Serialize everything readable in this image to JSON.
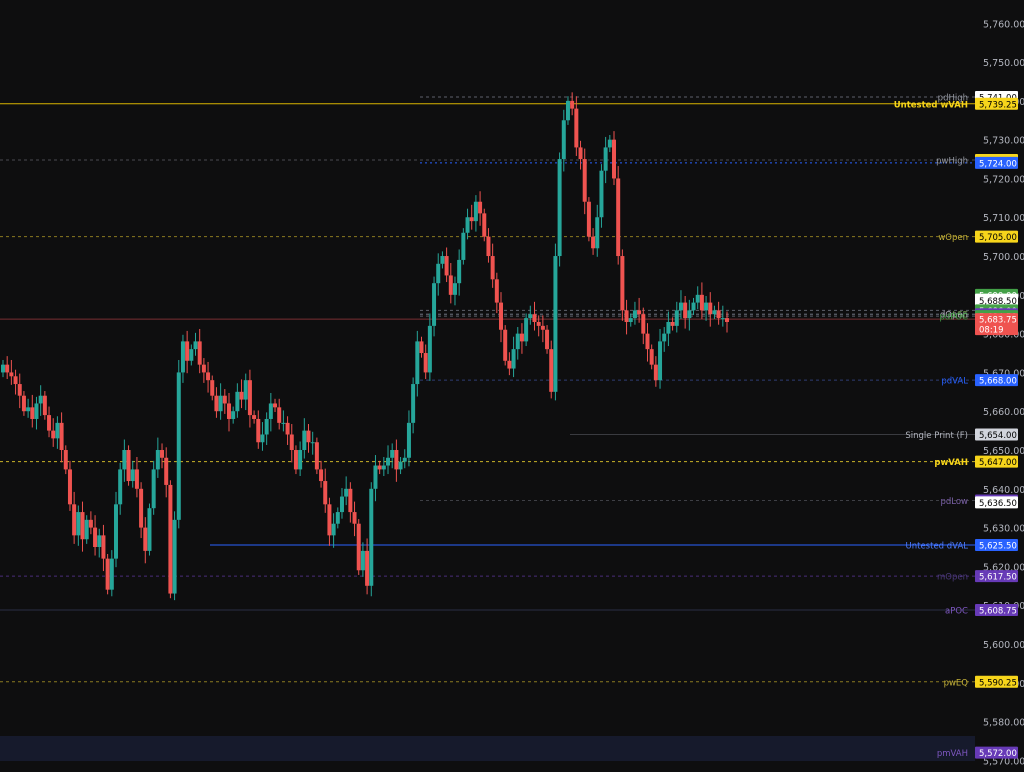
{
  "chart_data": {
    "type": "candlestick",
    "ylim": [
      5567,
      5766
    ],
    "y_axis": {
      "ticks": [
        5760,
        5750,
        5740,
        5730,
        5720,
        5710,
        5700,
        5690,
        5680,
        5670,
        5660,
        5650,
        5640,
        5630,
        5620,
        5610,
        5600,
        5590,
        5580,
        5570
      ],
      "tick_labels": [
        "5,760.00",
        "5,750.00",
        "5,740.00",
        "5,730.00",
        "5,720.00",
        "5,710.00",
        "5,700.00",
        "5,690.00",
        "5,680.00",
        "5,670.00",
        "5,660.00",
        "5,650.00",
        "5,640.00",
        "5,630.00",
        "5,620.00",
        "5,610.00",
        "5,600.00",
        "5,590.00",
        "5,580.00",
        "5,570.00"
      ]
    },
    "up_color": "#26a69a",
    "down_color": "#ef5350",
    "bar_count": 121,
    "closes": [
      5672,
      5670,
      5669,
      5667,
      5664,
      5660,
      5661,
      5658,
      5662,
      5664,
      5659,
      5655,
      5653,
      5657,
      5650,
      5645,
      5636,
      5628,
      5634,
      5627,
      5632,
      5630,
      5625,
      5628,
      5622,
      5614,
      5622,
      5636,
      5645,
      5650,
      5642,
      5645,
      5640,
      5630,
      5624,
      5635,
      5645,
      5650,
      5648,
      5641,
      5613,
      5632,
      5670,
      5678,
      5673,
      5676,
      5678,
      5672,
      5670,
      5668,
      5664,
      5660,
      5664,
      5662,
      5658,
      5660,
      5665,
      5663,
      5668,
      5659,
      5658,
      5652,
      5654,
      5658,
      5662,
      5661,
      5657,
      5657,
      5654,
      5650,
      5645,
      5650,
      5655,
      5652,
      5652,
      5645,
      5642,
      5636,
      5628,
      5631,
      5634,
      5638,
      5640,
      5634,
      5631,
      5619,
      5624,
      5615,
      5640,
      5646,
      5645,
      5646,
      5648,
      5650,
      5645,
      5647,
      5648,
      5657,
      5667,
      5678,
      5675,
      5670,
      5682,
      5693,
      5698,
      5700,
      5695,
      5690,
      5693,
      5699,
      5706,
      5710,
      5709,
      5714,
      5711,
      5705,
      5700,
      5694,
      5688,
      5681,
      5673
    ],
    "labels": [
      {
        "text": "pdHigh",
        "price": "5,741.00"
      },
      {
        "text": "Untested wVAH",
        "price": "5,739.25"
      },
      {
        "text": "pwHigh",
        "price": "5,724.75"
      },
      {
        "text": "",
        "price": "5,724.00"
      },
      {
        "text": "wOpen",
        "price": "5,705.00"
      },
      {
        "text": "",
        "price": "5,690.00"
      },
      {
        "text": "",
        "price": "5,688.75"
      },
      {
        "text": "",
        "price": "5,688.50"
      },
      {
        "text": "",
        "price": "5,686.00"
      },
      {
        "text": "LSE",
        "price": "5,685.00"
      },
      {
        "text": "dOpen",
        "price": ""
      },
      {
        "text": "pdPOC",
        "price": "5,684.50"
      },
      {
        "text": "",
        "price": "5,683.75"
      },
      {
        "text": "",
        "price": "08:19"
      },
      {
        "text": "pdVAL",
        "price": "5,668.00"
      },
      {
        "text": "Single Print (F)",
        "price": "5,654.00"
      },
      {
        "text": "pwVAH",
        "price": "5,647.00"
      },
      {
        "text": "pdLow",
        "price": "5,637.00"
      },
      {
        "text": "",
        "price": "5,636.50"
      },
      {
        "text": "Untested dVAL",
        "price": "5,625.50"
      },
      {
        "text": "mOpen",
        "price": "5,617.50"
      },
      {
        "text": "aPOC",
        "price": "5,608.75"
      },
      {
        "text": "pwEQ",
        "price": "5,590.25"
      },
      {
        "text": "pmVAH",
        "price": "5,572.00"
      }
    ],
    "bars_part2": [
      5671,
      5676,
      5680,
      5678,
      5684,
      5685,
      5683,
      5682,
      5681,
      5676,
      5665,
      5700,
      5725,
      5735,
      5740,
      5738,
      5728,
      5725,
      5714,
      5705,
      5702,
      5710,
      5722,
      5728,
      5730,
      5720,
      5700,
      5686,
      5683,
      5684,
      5686,
      5685,
      5680,
      5676,
      5672,
      5668,
      5678,
      5680,
      5683,
      5682,
      5686,
      5688,
      5684,
      5686,
      5688,
      5690,
      5686,
      5688,
      5685,
      5686,
      5684,
      5684,
      5683
    ]
  }
}
